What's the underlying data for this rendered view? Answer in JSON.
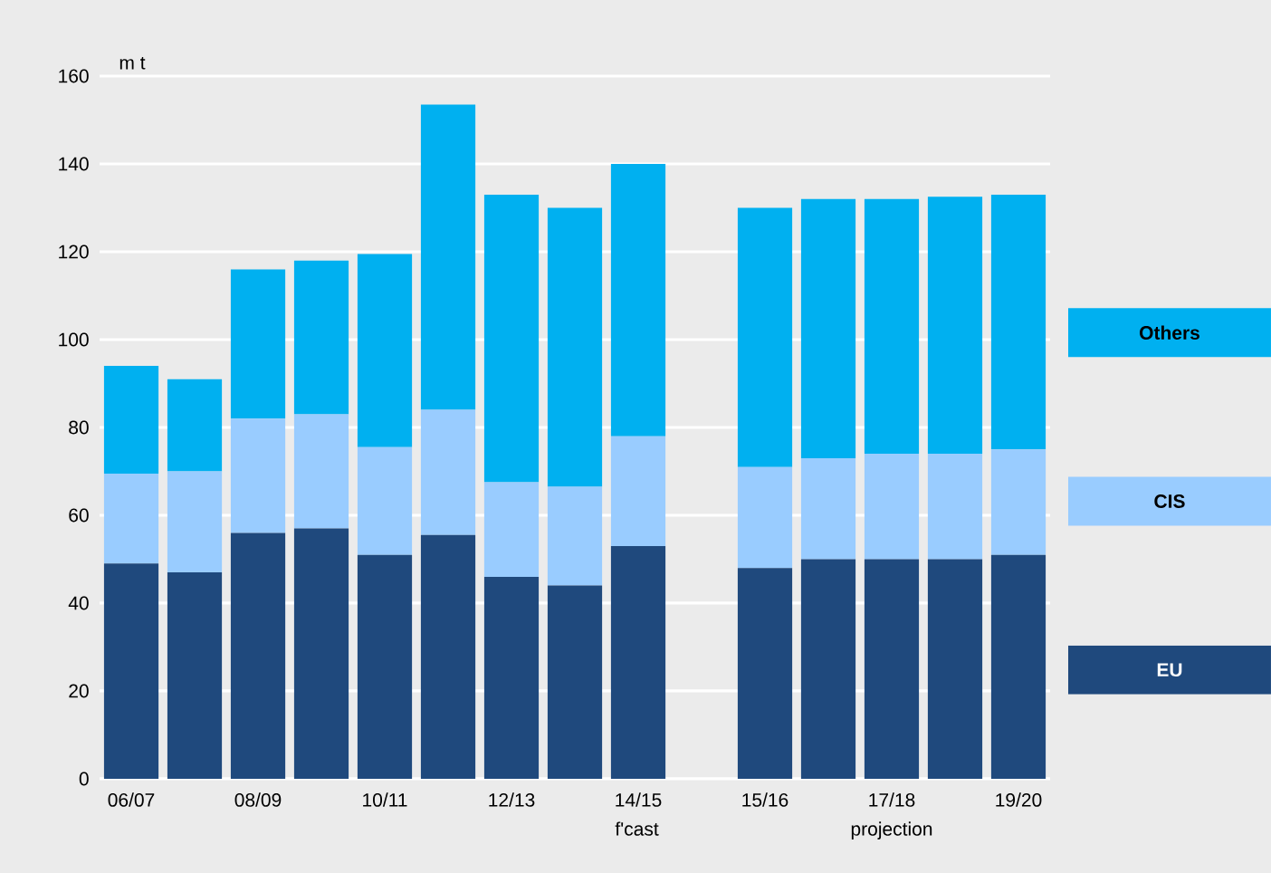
{
  "chart_data": {
    "type": "bar",
    "stacked": true,
    "ylabel": "m t",
    "categories": [
      "06/07",
      null,
      "08/09",
      null,
      "10/11",
      null,
      "12/13",
      null,
      "14/15",
      null,
      "15/16",
      null,
      "17/18",
      null,
      "19/20"
    ],
    "series": [
      {
        "name": "EU",
        "color": "#1f497d",
        "values": [
          49,
          47,
          56,
          57,
          51,
          55.5,
          46,
          44,
          53,
          null,
          48,
          50,
          50,
          50,
          51
        ]
      },
      {
        "name": "CIS",
        "color": "#99ccff",
        "values": [
          20.5,
          23,
          26,
          26,
          24.5,
          28.5,
          21.5,
          22.5,
          25,
          null,
          23,
          23,
          24,
          24,
          24
        ]
      },
      {
        "name": "Others",
        "color": "#00b0f0",
        "values": [
          24.5,
          21,
          34,
          35,
          44,
          69.5,
          65.5,
          63.5,
          62,
          null,
          59,
          59,
          58,
          58.5,
          58
        ]
      }
    ],
    "ylim": [
      0,
      160
    ],
    "yticks": [
      0,
      20,
      40,
      60,
      80,
      100,
      120,
      140,
      160
    ],
    "grid": "y",
    "legend": "right",
    "annotations": [
      "f'cast",
      "projection"
    ]
  }
}
